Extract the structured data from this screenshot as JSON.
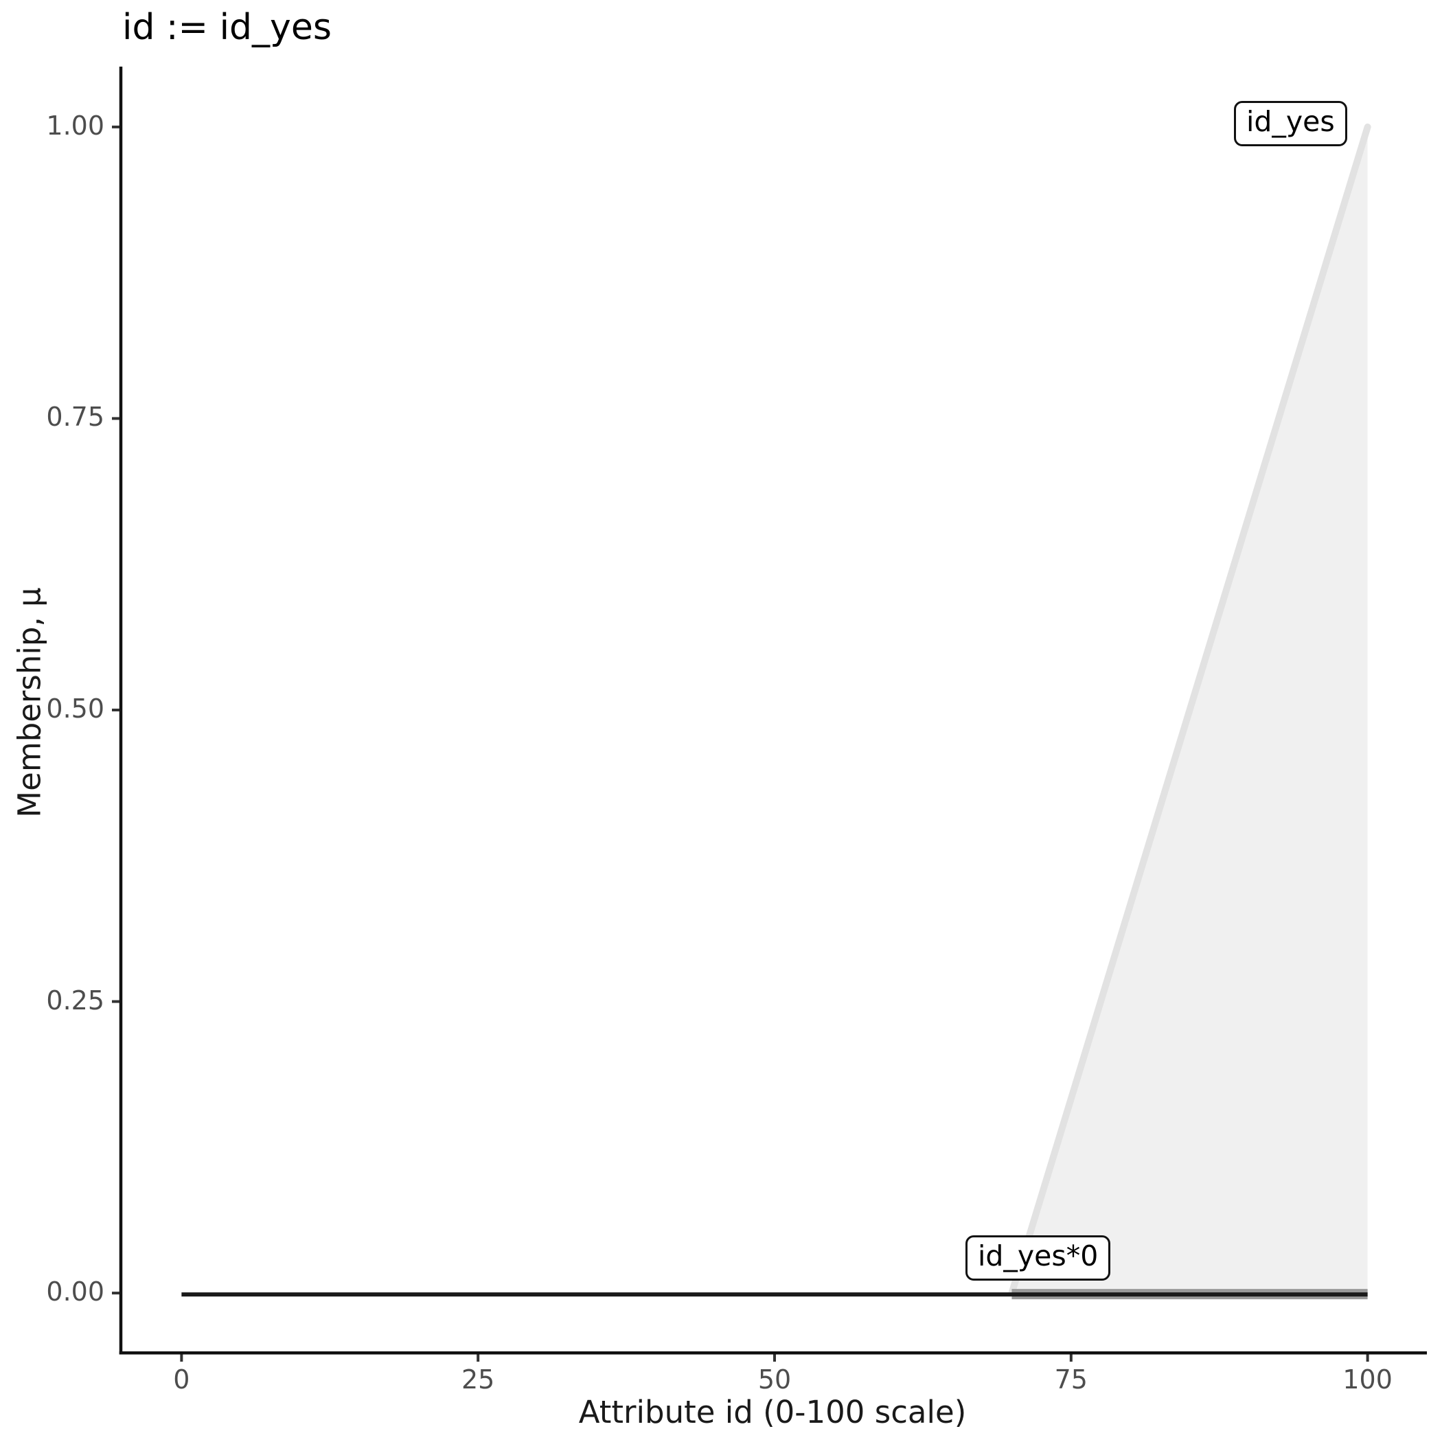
{
  "title": "id := id_yes",
  "axes": {
    "x": {
      "label": "Attribute id (0-100 scale)",
      "tick_labels": [
        "0",
        "25",
        "50",
        "75",
        "100"
      ]
    },
    "y": {
      "label": "Membership, μ",
      "tick_labels": [
        "0.00",
        "0.25",
        "0.50",
        "0.75",
        "1.00"
      ]
    }
  },
  "chart_data": {
    "type": "area",
    "title": "id := id_yes",
    "xlabel": "Attribute id (0-100 scale)",
    "ylabel": "Membership, μ",
    "xlim": [
      -5,
      105
    ],
    "ylim": [
      -0.05,
      1.05
    ],
    "x_ticks": [
      0,
      25,
      50,
      75,
      100
    ],
    "x_tick_labels": [
      "0",
      "25",
      "50",
      "75",
      "100"
    ],
    "y_ticks": [
      0,
      0.25,
      0.5,
      0.75,
      1
    ],
    "y_tick_labels": [
      "0.00",
      "0.25",
      "0.50",
      "0.75",
      "1.00"
    ],
    "grid": false,
    "legend": "none",
    "background": "#ffffff",
    "axis_color": "#111111",
    "tick_color": "#333333",
    "tick_label_color": "#4d4d4d",
    "series": [
      {
        "name": "id_yes",
        "description": "membership function rising from 0 at x=70 to 1 at x=100",
        "x": [
          70,
          100
        ],
        "y": [
          0,
          1
        ],
        "line_color": "#e2e2e2",
        "line_width": 10,
        "fill": true,
        "fill_color": "#f0f0f0"
      },
      {
        "name": "id_yes*0",
        "description": "id_yes scaled by 0, flat at zero over [70,100]",
        "x": [
          70,
          100
        ],
        "y": [
          0,
          0
        ],
        "line_color": "#999999",
        "line_width": 15,
        "fill": false
      },
      {
        "name": "zero-baseline",
        "description": "zero membership line over the whole universe [0,100]",
        "x": [
          0,
          100
        ],
        "y": [
          0,
          0
        ],
        "line_color": "#1a1a1a",
        "line_width": 6,
        "fill": false
      }
    ],
    "annotations": [
      {
        "text": "id_yes",
        "anchor_x": 94,
        "anchor_y": 1.0
      },
      {
        "text": "id_yes*0",
        "anchor_x": 73,
        "anchor_y": 0.04
      }
    ]
  }
}
